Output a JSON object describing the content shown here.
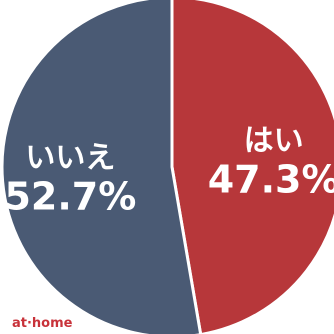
{
  "chart_data": {
    "type": "pie",
    "title": "",
    "slices": [
      {
        "label": "はい",
        "value": 47.3,
        "value_label": "47.3%",
        "color": "#b7373a"
      },
      {
        "label": "いいえ",
        "value": 52.7,
        "value_label": "52.7%",
        "color": "#4a5a74"
      }
    ],
    "start": "top",
    "direction": "clockwise",
    "legend": "none"
  },
  "brand": {
    "logo_text": "at·home",
    "color": "#c8323a"
  }
}
